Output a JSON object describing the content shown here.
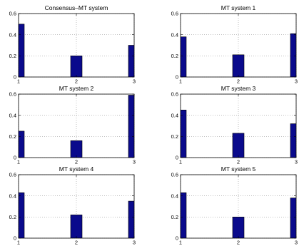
{
  "figure": {
    "background": "#ffffff",
    "bar_fill": "#0a0a8c",
    "bar_stroke": "#000000",
    "grid_color": "#9a9a9a"
  },
  "chart_data": [
    {
      "type": "bar",
      "title": "Consensus–MT system",
      "x": [
        1,
        2,
        3
      ],
      "values": [
        0.5,
        0.2,
        0.3
      ],
      "xlim": [
        1,
        3
      ],
      "ylim": [
        0,
        0.6
      ],
      "xticks": [
        "1",
        "2",
        "3"
      ],
      "yticks": [
        "0",
        "0.2",
        "0.4",
        "0.6"
      ],
      "grid": true
    },
    {
      "type": "bar",
      "title": "MT system 1",
      "x": [
        1,
        2,
        3
      ],
      "values": [
        0.38,
        0.21,
        0.41
      ],
      "xlim": [
        1,
        3
      ],
      "ylim": [
        0,
        0.6
      ],
      "xticks": [
        "1",
        "2",
        "3"
      ],
      "yticks": [
        "0",
        "0.2",
        "0.4",
        "0.6"
      ],
      "grid": true
    },
    {
      "type": "bar",
      "title": "MT system 2",
      "x": [
        1,
        2,
        3
      ],
      "values": [
        0.25,
        0.16,
        0.59
      ],
      "xlim": [
        1,
        3
      ],
      "ylim": [
        0,
        0.6
      ],
      "xticks": [
        "1",
        "2",
        "3"
      ],
      "yticks": [
        "0",
        "0.2",
        "0.4",
        "0.6"
      ],
      "grid": true
    },
    {
      "type": "bar",
      "title": "MT system 3",
      "x": [
        1,
        2,
        3
      ],
      "values": [
        0.45,
        0.23,
        0.32
      ],
      "xlim": [
        1,
        3
      ],
      "ylim": [
        0,
        0.6
      ],
      "xticks": [
        "1",
        "2",
        "3"
      ],
      "yticks": [
        "0",
        "0.2",
        "0.4",
        "0.6"
      ],
      "grid": true
    },
    {
      "type": "bar",
      "title": "MT system 4",
      "x": [
        1,
        2,
        3
      ],
      "values": [
        0.43,
        0.22,
        0.35
      ],
      "xlim": [
        1,
        3
      ],
      "ylim": [
        0,
        0.6
      ],
      "xticks": [
        "1",
        "2",
        "3"
      ],
      "yticks": [
        "0",
        "0.2",
        "0.4",
        "0.6"
      ],
      "grid": true
    },
    {
      "type": "bar",
      "title": "MT system 5",
      "x": [
        1,
        2,
        3
      ],
      "values": [
        0.43,
        0.2,
        0.38
      ],
      "xlim": [
        1,
        3
      ],
      "ylim": [
        0,
        0.6
      ],
      "xticks": [
        "1",
        "2",
        "3"
      ],
      "yticks": [
        "0",
        "0.2",
        "0.4",
        "0.6"
      ],
      "grid": true
    }
  ]
}
